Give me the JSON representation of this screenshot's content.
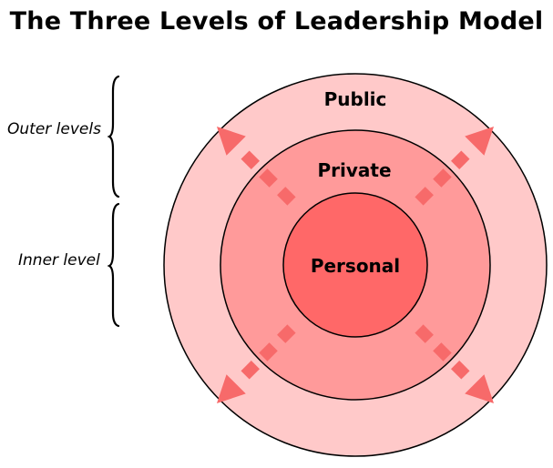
{
  "title": "The Three Levels of Leadership Model",
  "side_labels": {
    "outer": "Outer levels",
    "inner": "Inner level"
  },
  "rings": {
    "public": "Public",
    "private": "Private",
    "personal": "Personal"
  },
  "colors": {
    "public_fill": "#ffc9c9",
    "private_fill": "#ff9a9a",
    "personal_fill": "#ff6868",
    "arrow": "#f76a6a",
    "stroke": "#000000"
  }
}
